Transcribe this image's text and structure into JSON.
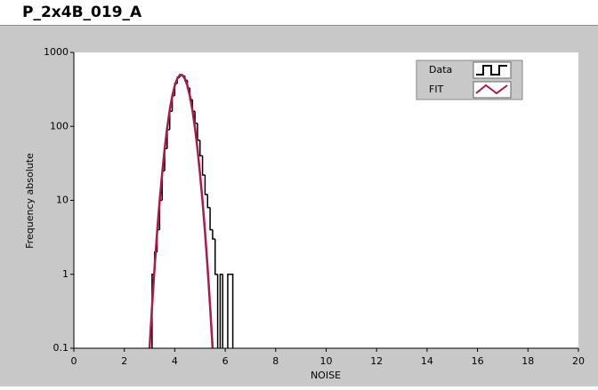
{
  "chart_data": {
    "type": "histogram",
    "title": "P_2x4B_019_A",
    "xlabel": "NOISE",
    "ylabel": "Frequency absolute",
    "yscale": "log",
    "legend": "upper right",
    "xlim": [
      0,
      20
    ],
    "xticks": [
      0,
      2,
      4,
      6,
      8,
      10,
      12,
      14,
      16,
      18,
      20
    ],
    "ylim": [
      0.1,
      1000
    ],
    "yticks": [
      0.1,
      1,
      10,
      100,
      1000
    ],
    "bins": [
      3.1,
      3.2,
      3.3,
      3.4,
      3.5,
      3.6,
      3.7,
      3.8,
      3.9,
      4.0,
      4.1,
      4.2,
      4.3,
      4.4,
      4.5,
      4.6,
      4.7,
      4.8,
      4.9,
      5.0,
      5.1,
      5.2,
      5.3,
      5.4,
      5.5,
      5.6,
      5.7,
      5.8,
      5.9,
      6.0,
      6.1,
      6.2,
      6.3
    ],
    "series": [
      {
        "name": "Data",
        "color": "#000000",
        "values": [
          1,
          2,
          4,
          10,
          25,
          50,
          90,
          160,
          260,
          380,
          460,
          500,
          480,
          420,
          330,
          230,
          160,
          110,
          65,
          40,
          22,
          12,
          8,
          4,
          3,
          1,
          0,
          1,
          0,
          0,
          1,
          1
        ]
      },
      {
        "name": "FIT",
        "color": "#b0174f",
        "x": [
          3.0,
          3.1,
          3.2,
          3.3,
          3.4,
          3.5,
          3.6,
          3.7,
          3.8,
          3.9,
          4.0,
          4.1,
          4.2,
          4.3,
          4.4,
          4.5,
          4.6,
          4.7,
          4.8,
          4.9,
          5.0,
          5.1,
          5.2,
          5.3,
          5.4,
          5.5
        ],
        "values": [
          0.1,
          0.37,
          1.24,
          3.7,
          9.8,
          23,
          50,
          96,
          166,
          257,
          356,
          442,
          493,
          493,
          442,
          356,
          257,
          166,
          96,
          50,
          23,
          9.8,
          3.7,
          1.24,
          0.37,
          0.1
        ]
      }
    ]
  }
}
